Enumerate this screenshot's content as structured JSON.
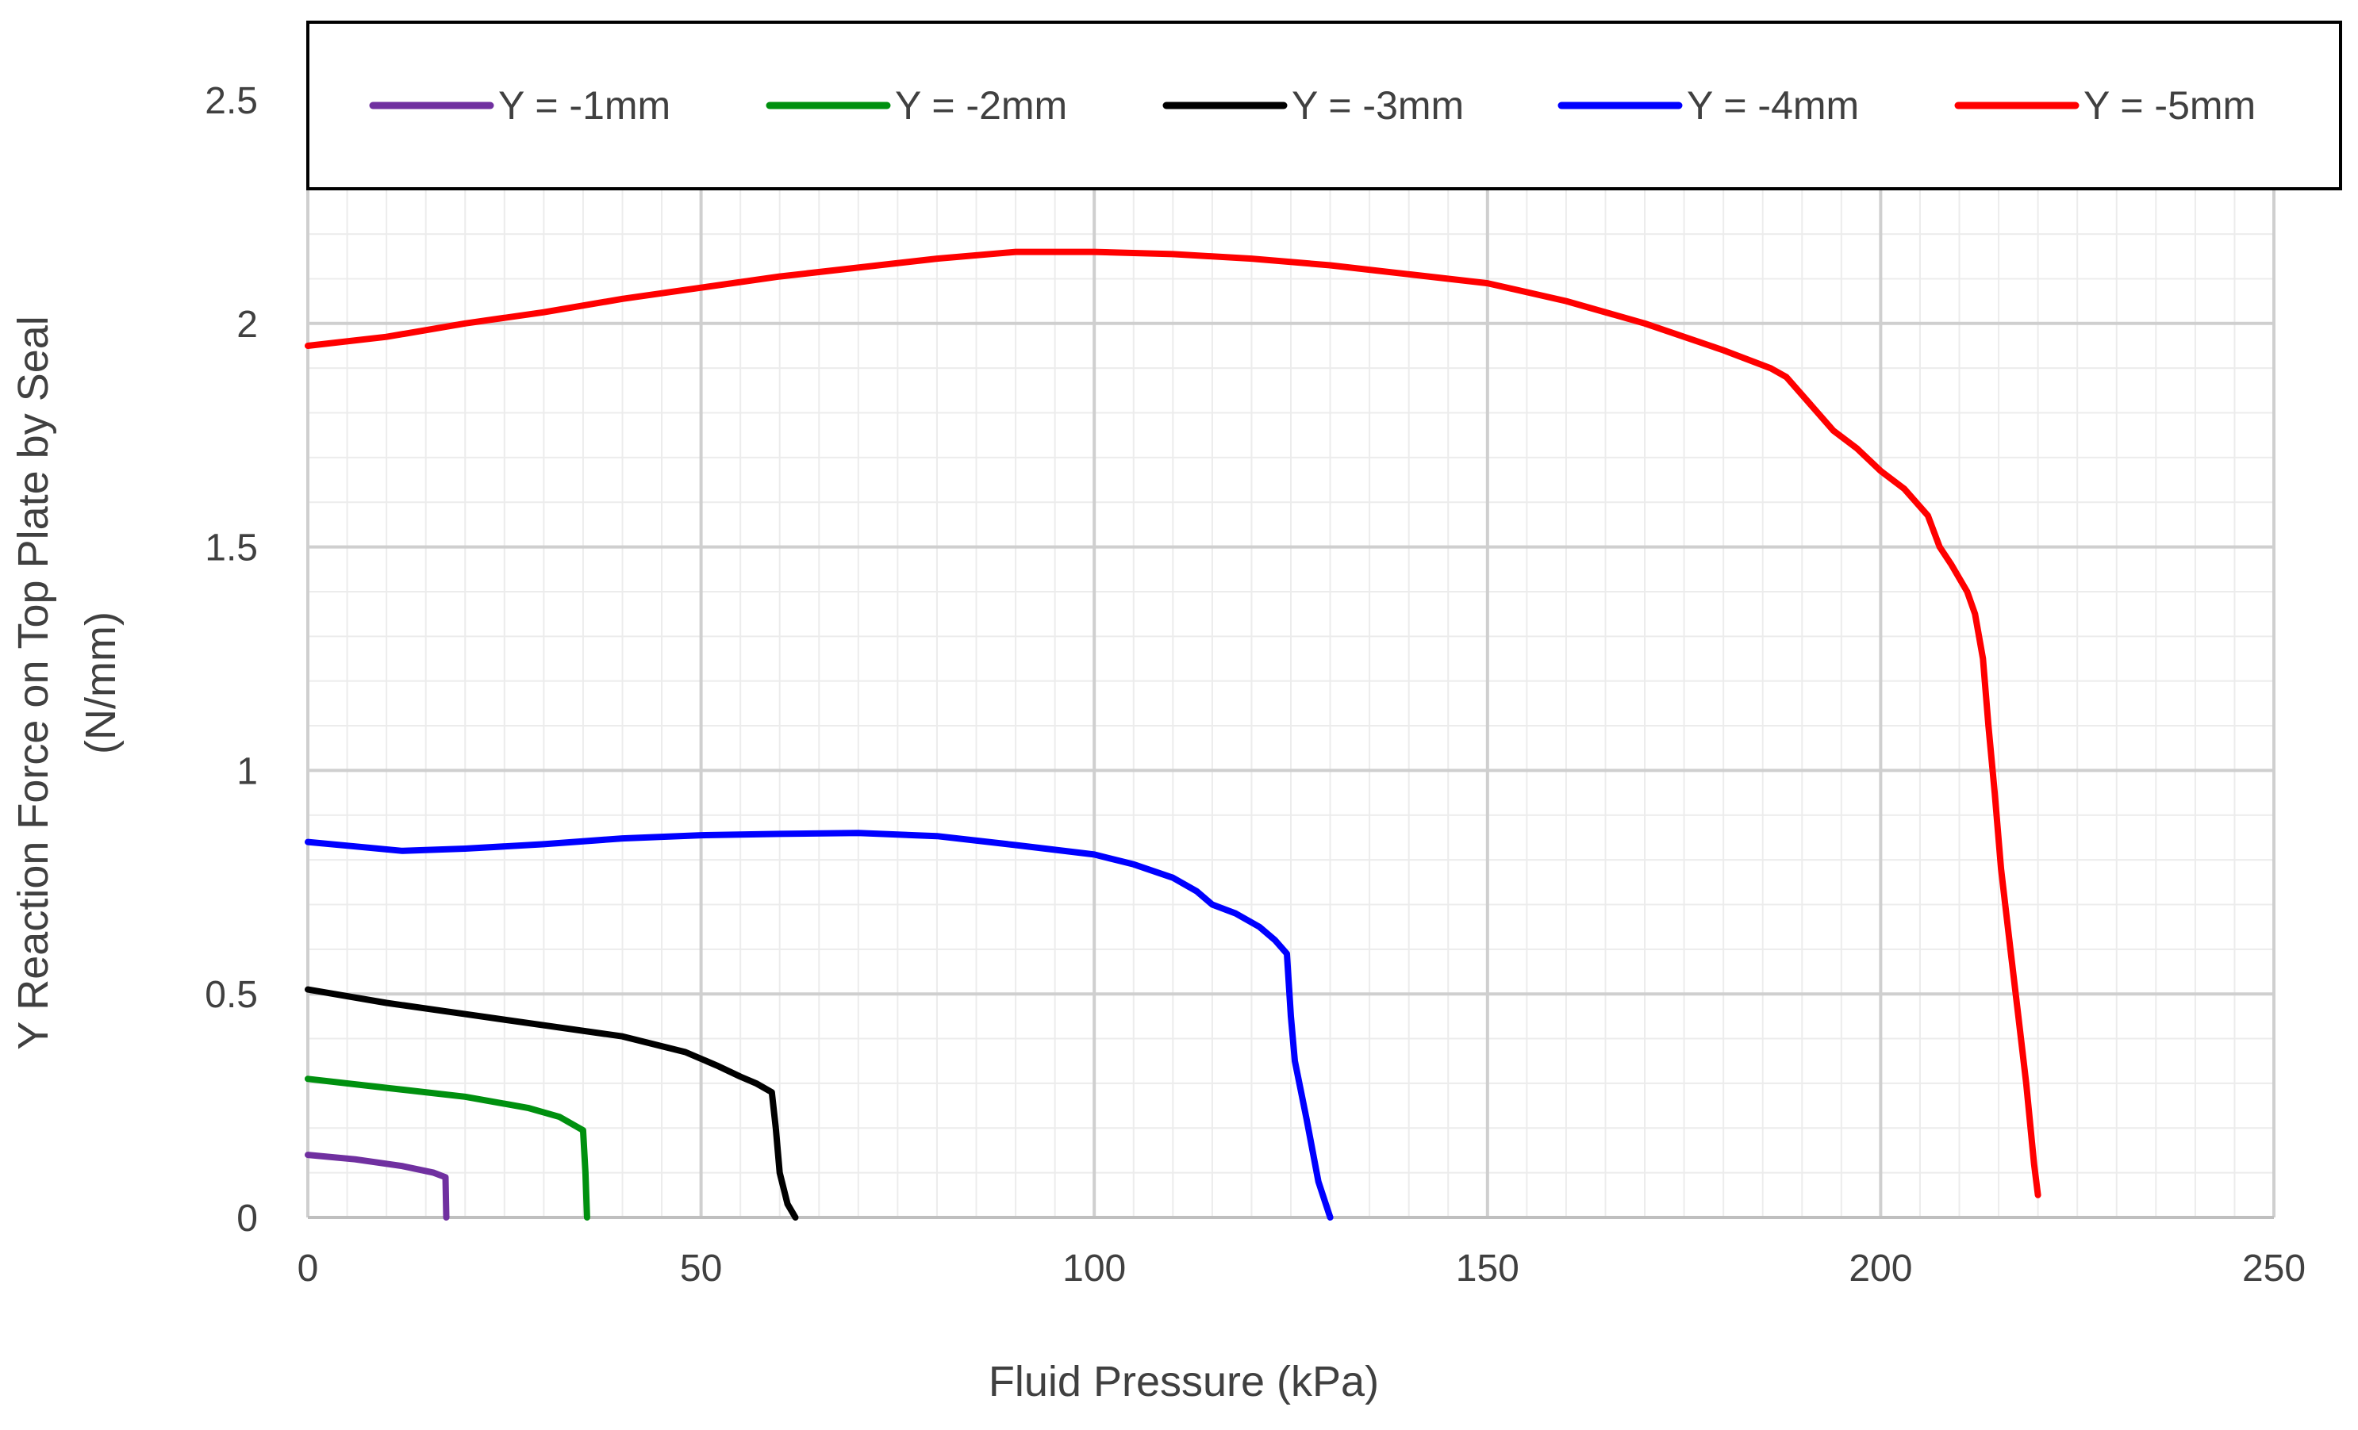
{
  "chart_data": {
    "type": "line",
    "title": "",
    "xlabel": "Fluid Pressure (kPa)",
    "ylabel_line1": "Y Reaction Force on Top Plate by Seal",
    "ylabel_line2": "(N/mm)",
    "xlim": [
      0,
      250
    ],
    "ylim": [
      0,
      2.5
    ],
    "x_ticks": [
      0,
      50,
      100,
      150,
      200,
      250
    ],
    "y_ticks": [
      0,
      0.5,
      1,
      1.5,
      2,
      2.5
    ],
    "x_tick_labels": [
      "0",
      "50",
      "100",
      "150",
      "200",
      "250"
    ],
    "y_tick_labels": [
      "0",
      "0.5",
      "1",
      "1.5",
      "2",
      "2.5"
    ],
    "major_grid": true,
    "minor_grid": true,
    "legend_position": "top",
    "series": [
      {
        "name": "Y = -1mm",
        "color": "#7030A0",
        "points": [
          [
            0,
            0.14
          ],
          [
            6,
            0.13
          ],
          [
            12,
            0.115
          ],
          [
            16,
            0.1
          ],
          [
            17.5,
            0.09
          ],
          [
            17.6,
            0.0
          ]
        ]
      },
      {
        "name": "Y = -2mm",
        "color": "#00900F",
        "points": [
          [
            0,
            0.31
          ],
          [
            10,
            0.29
          ],
          [
            20,
            0.27
          ],
          [
            28,
            0.245
          ],
          [
            32,
            0.225
          ],
          [
            35,
            0.195
          ],
          [
            35.3,
            0.1
          ],
          [
            35.5,
            0.0
          ]
        ]
      },
      {
        "name": "Y = -3mm",
        "color": "#000000",
        "points": [
          [
            0,
            0.51
          ],
          [
            10,
            0.48
          ],
          [
            20,
            0.455
          ],
          [
            30,
            0.43
          ],
          [
            40,
            0.405
          ],
          [
            48,
            0.37
          ],
          [
            52,
            0.34
          ],
          [
            55,
            0.315
          ],
          [
            57,
            0.3
          ],
          [
            59,
            0.28
          ],
          [
            59.5,
            0.2
          ],
          [
            60,
            0.1
          ],
          [
            61,
            0.03
          ],
          [
            62,
            0.0
          ]
        ]
      },
      {
        "name": "Y = -4mm",
        "color": "#0000FF",
        "points": [
          [
            0,
            0.84
          ],
          [
            6,
            0.83
          ],
          [
            12,
            0.82
          ],
          [
            20,
            0.825
          ],
          [
            30,
            0.835
          ],
          [
            40,
            0.848
          ],
          [
            50,
            0.855
          ],
          [
            60,
            0.858
          ],
          [
            70,
            0.86
          ],
          [
            80,
            0.853
          ],
          [
            90,
            0.833
          ],
          [
            100,
            0.812
          ],
          [
            105,
            0.79
          ],
          [
            110,
            0.76
          ],
          [
            113,
            0.73
          ],
          [
            115,
            0.7
          ],
          [
            118,
            0.68
          ],
          [
            121,
            0.65
          ],
          [
            123,
            0.62
          ],
          [
            124.5,
            0.59
          ],
          [
            125,
            0.45
          ],
          [
            125.5,
            0.35
          ],
          [
            127,
            0.22
          ],
          [
            128.5,
            0.08
          ],
          [
            130,
            0.0
          ]
        ]
      },
      {
        "name": "Y = -5mm",
        "color": "#FF0000",
        "points": [
          [
            0,
            1.95
          ],
          [
            10,
            1.97
          ],
          [
            20,
            2.0
          ],
          [
            30,
            2.025
          ],
          [
            40,
            2.055
          ],
          [
            50,
            2.08
          ],
          [
            60,
            2.105
          ],
          [
            70,
            2.125
          ],
          [
            80,
            2.145
          ],
          [
            90,
            2.16
          ],
          [
            100,
            2.16
          ],
          [
            110,
            2.155
          ],
          [
            120,
            2.145
          ],
          [
            130,
            2.13
          ],
          [
            140,
            2.11
          ],
          [
            150,
            2.09
          ],
          [
            160,
            2.05
          ],
          [
            170,
            2.0
          ],
          [
            180,
            1.94
          ],
          [
            186,
            1.9
          ],
          [
            188,
            1.88
          ],
          [
            191,
            1.82
          ],
          [
            194,
            1.76
          ],
          [
            197,
            1.72
          ],
          [
            200,
            1.67
          ],
          [
            203,
            1.63
          ],
          [
            206,
            1.57
          ],
          [
            207.5,
            1.5
          ],
          [
            209,
            1.46
          ],
          [
            211,
            1.4
          ],
          [
            212,
            1.35
          ],
          [
            213,
            1.25
          ],
          [
            213.7,
            1.1
          ],
          [
            214.5,
            0.95
          ],
          [
            215.3,
            0.78
          ],
          [
            216.5,
            0.6
          ],
          [
            217.5,
            0.45
          ],
          [
            218.5,
            0.3
          ],
          [
            219.5,
            0.12
          ],
          [
            220,
            0.05
          ]
        ]
      }
    ]
  }
}
